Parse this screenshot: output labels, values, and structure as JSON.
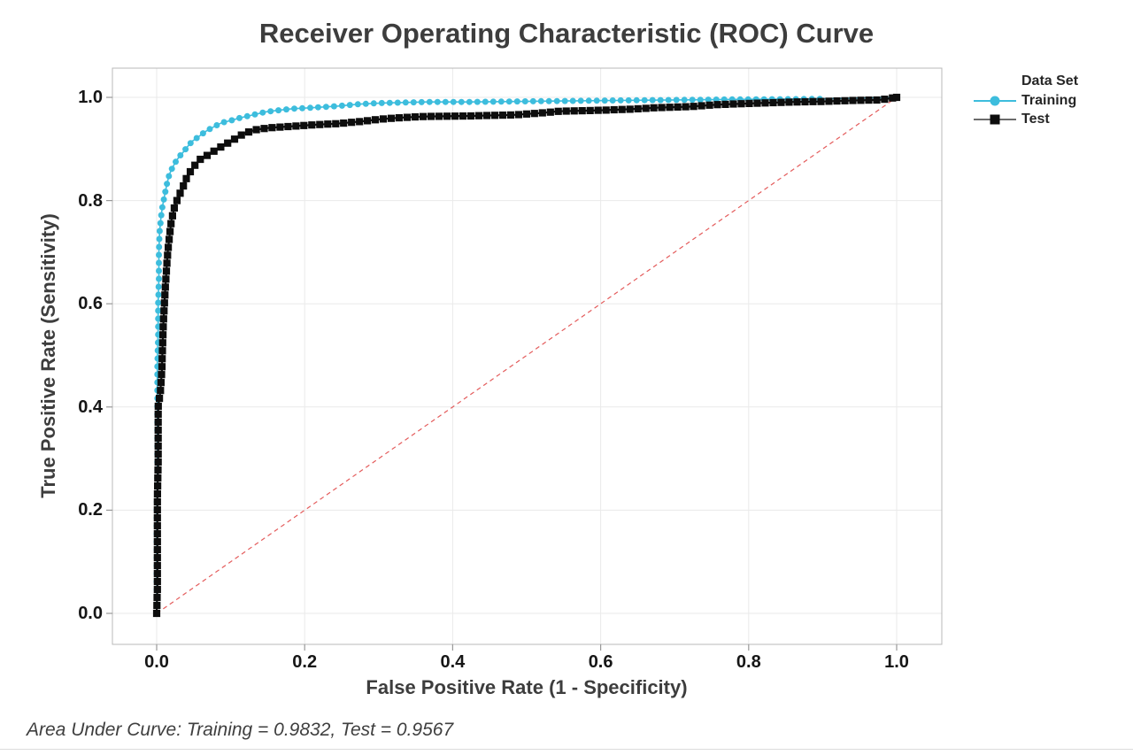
{
  "title": "Receiver Operating Characteristic (ROC) Curve",
  "axes": {
    "x": {
      "label": "False Positive Rate (1 - Specificity)",
      "ticks": [
        "0.0",
        "0.2",
        "0.4",
        "0.6",
        "0.8",
        "1.0"
      ],
      "range": [
        -0.06,
        1.06
      ]
    },
    "y": {
      "label": "True Positive Rate (Sensitivity)",
      "ticks": [
        "0.0",
        "0.2",
        "0.4",
        "0.6",
        "0.8",
        "1.0"
      ],
      "range": [
        -0.06,
        1.06
      ]
    }
  },
  "legend": {
    "title": "Data Set",
    "items": [
      {
        "label": "Training",
        "marker": "circle",
        "color": "#3dbddd",
        "line_color": "#3dbddd"
      },
      {
        "label": "Test",
        "marker": "square",
        "color": "#0d0d0d",
        "line_color": "#3a3a3a"
      }
    ]
  },
  "footnote": "Area Under Curve: Training = 0.9832, Test = 0.9567",
  "colors": {
    "training": "#3dbddd",
    "test": "#0d0d0d",
    "diagonal": "#e45c5c",
    "grid": "#eaeaea",
    "border": "#b8b8b8",
    "tick": "#999999",
    "title_text": "#3d3d3d",
    "tick_text": "#161616"
  },
  "chart_data": {
    "type": "line",
    "title": "Receiver Operating Characteristic (ROC) Curve",
    "xlabel": "False Positive Rate (1 - Specificity)",
    "ylabel": "True Positive Rate (Sensitivity)",
    "xlim": [
      -0.06,
      1.06
    ],
    "ylim": [
      -0.06,
      1.06
    ],
    "grid": true,
    "legend_position": "right",
    "legend_title": "Data Set",
    "diagonal": {
      "from": [
        0,
        0
      ],
      "to": [
        1,
        1
      ],
      "style": "dashed",
      "color": "#e45c5c"
    },
    "series": [
      {
        "name": "Training",
        "marker": "circle",
        "color": "#3dbddd",
        "auc": 0.9832,
        "marker_end_x": 0.905,
        "points": [
          [
            0.0,
            0.0
          ],
          [
            0.0,
            0.06
          ],
          [
            0.0,
            0.13
          ],
          [
            0.0,
            0.2
          ],
          [
            0.001,
            0.27
          ],
          [
            0.001,
            0.34
          ],
          [
            0.001,
            0.41
          ],
          [
            0.001,
            0.48
          ],
          [
            0.002,
            0.54
          ],
          [
            0.002,
            0.6
          ],
          [
            0.003,
            0.65
          ],
          [
            0.003,
            0.7
          ],
          [
            0.004,
            0.74
          ],
          [
            0.006,
            0.77
          ],
          [
            0.008,
            0.79
          ],
          [
            0.011,
            0.812
          ],
          [
            0.014,
            0.833
          ],
          [
            0.017,
            0.85
          ],
          [
            0.021,
            0.863
          ],
          [
            0.026,
            0.876
          ],
          [
            0.031,
            0.886
          ],
          [
            0.036,
            0.894
          ],
          [
            0.042,
            0.905
          ],
          [
            0.048,
            0.915
          ],
          [
            0.056,
            0.923
          ],
          [
            0.065,
            0.933
          ],
          [
            0.076,
            0.942
          ],
          [
            0.088,
            0.951
          ],
          [
            0.1,
            0.955
          ],
          [
            0.112,
            0.96
          ],
          [
            0.124,
            0.964
          ],
          [
            0.148,
            0.972
          ],
          [
            0.165,
            0.975
          ],
          [
            0.184,
            0.978
          ],
          [
            0.21,
            0.98
          ],
          [
            0.244,
            0.983
          ],
          [
            0.275,
            0.987
          ],
          [
            0.304,
            0.989
          ],
          [
            0.364,
            0.991
          ],
          [
            0.42,
            0.991
          ],
          [
            0.483,
            0.992
          ],
          [
            0.55,
            0.993
          ],
          [
            0.62,
            0.994
          ],
          [
            0.7,
            0.995
          ],
          [
            0.78,
            0.996
          ],
          [
            0.85,
            0.9965
          ],
          [
            0.896,
            0.997
          ],
          [
            1.0,
            1.0
          ]
        ]
      },
      {
        "name": "Test",
        "marker": "square",
        "color": "#0d0d0d",
        "auc": 0.9567,
        "marker_end_x": 1.0,
        "points": [
          [
            0.0,
            0.0
          ],
          [
            0.001,
            0.05
          ],
          [
            0.001,
            0.11
          ],
          [
            0.001,
            0.17
          ],
          [
            0.001,
            0.23
          ],
          [
            0.002,
            0.29
          ],
          [
            0.002,
            0.35
          ],
          [
            0.002,
            0.4
          ],
          [
            0.005,
            0.43
          ],
          [
            0.007,
            0.47
          ],
          [
            0.008,
            0.52
          ],
          [
            0.009,
            0.56
          ],
          [
            0.011,
            0.615
          ],
          [
            0.013,
            0.66
          ],
          [
            0.015,
            0.7
          ],
          [
            0.017,
            0.727
          ],
          [
            0.02,
            0.762
          ],
          [
            0.024,
            0.787
          ],
          [
            0.029,
            0.806
          ],
          [
            0.035,
            0.824
          ],
          [
            0.041,
            0.846
          ],
          [
            0.05,
            0.866
          ],
          [
            0.059,
            0.88
          ],
          [
            0.07,
            0.889
          ],
          [
            0.082,
            0.9
          ],
          [
            0.093,
            0.909
          ],
          [
            0.104,
            0.918
          ],
          [
            0.118,
            0.93
          ],
          [
            0.133,
            0.937
          ],
          [
            0.152,
            0.941
          ],
          [
            0.184,
            0.944
          ],
          [
            0.215,
            0.947
          ],
          [
            0.244,
            0.949
          ],
          [
            0.274,
            0.953
          ],
          [
            0.304,
            0.958
          ],
          [
            0.334,
            0.961
          ],
          [
            0.364,
            0.963
          ],
          [
            0.423,
            0.964
          ],
          [
            0.483,
            0.966
          ],
          [
            0.522,
            0.97
          ],
          [
            0.543,
            0.973
          ],
          [
            0.6,
            0.975
          ],
          [
            0.64,
            0.977
          ],
          [
            0.675,
            0.98
          ],
          [
            0.72,
            0.982
          ],
          [
            0.758,
            0.986
          ],
          [
            0.818,
            0.989
          ],
          [
            0.86,
            0.991
          ],
          [
            0.898,
            0.992
          ],
          [
            0.94,
            0.994
          ],
          [
            0.977,
            0.995
          ],
          [
            1.0,
            1.0
          ]
        ]
      }
    ]
  }
}
